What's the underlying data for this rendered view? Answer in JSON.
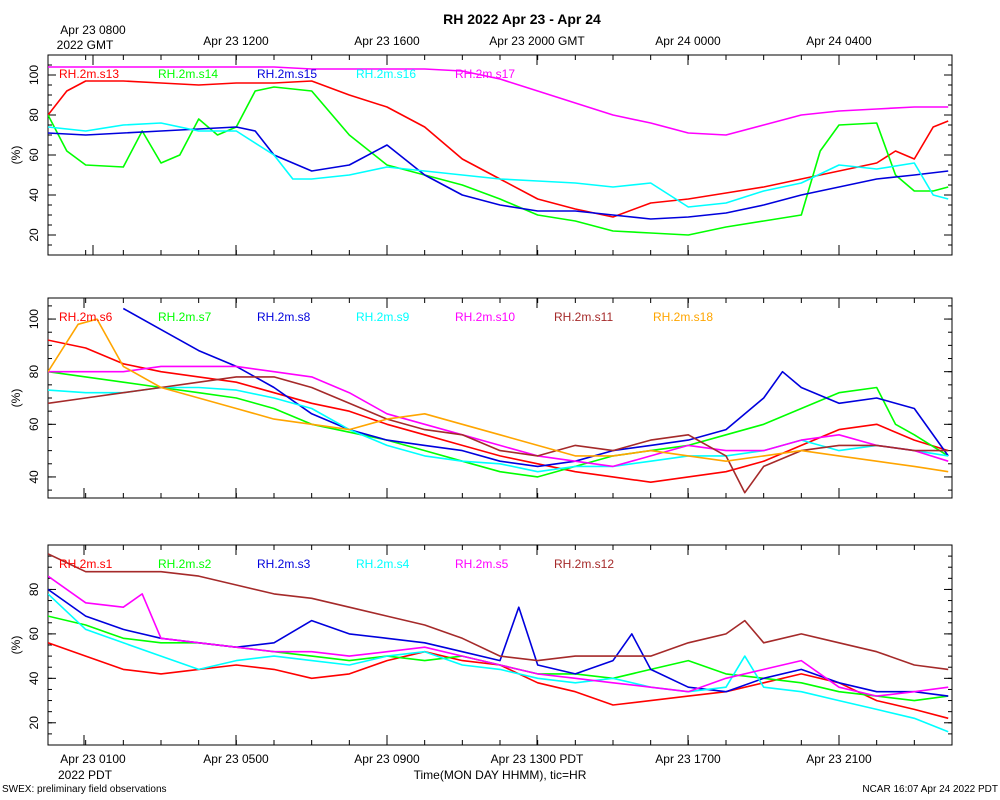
{
  "title": "RH 2022 Apr 23 - Apr 24",
  "top_axis_labels": [
    "Apr 23 0800",
    "Apr 23 1200",
    "Apr 23 1600",
    "Apr 23 2000 GMT",
    "Apr 24 0000",
    "Apr 24 0400"
  ],
  "top_year_label": "2022 GMT",
  "bottom_axis_labels": [
    "Apr 23 0100",
    "Apr 23 0500",
    "Apr 23 0900",
    "Apr 23 1300 PDT",
    "Apr 23 1700",
    "Apr 23 2100"
  ],
  "bottom_year_label": "2022 PDT",
  "x_axis_title": "Time(MON DAY HHMM), tic=HR",
  "footer_left": "SWEX: preliminary field observations",
  "footer_right": "NCAR 16:07 Apr 24 2022 PDT",
  "chart_data": [
    {
      "type": "line",
      "title": "RH 2022 Apr 23 - Apr 24",
      "ylabel": "(%)",
      "xlabel": "Time(MON DAY HHMM), tic=HR",
      "x_unit": "hours since Apr 23 0000 PDT",
      "xlim": [
        0,
        24
      ],
      "ylim": [
        10,
        110
      ],
      "yticks": [
        20,
        40,
        60,
        80,
        100
      ],
      "series": [
        {
          "name": "RH.2m.s13",
          "color": "#ff0000",
          "x": [
            0,
            0.5,
            1,
            2,
            3,
            4,
            5,
            6,
            7,
            8,
            9,
            10,
            11,
            12,
            13,
            14,
            15,
            16,
            17,
            18,
            19,
            20,
            21,
            22,
            22.5,
            23,
            23.5,
            23.9
          ],
          "y": [
            80,
            92,
            97,
            97,
            96,
            95,
            96,
            96,
            97,
            90,
            84,
            74,
            58,
            48,
            38,
            33,
            29,
            36,
            38,
            41,
            44,
            48,
            52,
            56,
            62,
            58,
            74,
            77
          ]
        },
        {
          "name": "RH.2m.s14",
          "color": "#00ff00",
          "x": [
            0,
            0.5,
            1,
            2,
            2.5,
            3,
            3.5,
            4,
            4.5,
            5,
            5.5,
            6,
            7,
            8,
            9,
            10,
            11,
            12,
            13,
            14,
            15,
            16,
            17,
            18,
            19,
            20,
            20.5,
            21,
            22,
            22.5,
            23,
            23.5,
            23.9
          ],
          "y": [
            80,
            62,
            55,
            54,
            72,
            56,
            60,
            78,
            70,
            74,
            92,
            94,
            92,
            70,
            55,
            50,
            45,
            38,
            30,
            27,
            22,
            21,
            20,
            24,
            27,
            30,
            62,
            75,
            76,
            50,
            42,
            42,
            44
          ]
        },
        {
          "name": "RH.2m.s15",
          "color": "#0000dd",
          "x": [
            0,
            1,
            2,
            3,
            4,
            5,
            5.5,
            6,
            7,
            8,
            9,
            10,
            11,
            12,
            13,
            14,
            15,
            16,
            17,
            18,
            19,
            20,
            21,
            22,
            23,
            23.9
          ],
          "y": [
            71,
            70,
            71,
            72,
            73,
            74,
            72,
            60,
            52,
            55,
            65,
            50,
            40,
            35,
            32,
            32,
            30,
            28,
            29,
            31,
            35,
            40,
            44,
            48,
            50,
            52
          ]
        },
        {
          "name": "RH.2m.s16",
          "color": "#00ffff",
          "x": [
            0,
            1,
            2,
            3,
            4,
            5,
            6,
            6.5,
            7,
            8,
            9,
            10,
            11,
            12,
            13,
            14,
            15,
            16,
            17,
            18,
            19,
            20,
            21,
            22,
            23,
            23.5,
            23.9
          ],
          "y": [
            74,
            72,
            75,
            76,
            72,
            72,
            60,
            48,
            48,
            50,
            54,
            52,
            50,
            48,
            47,
            46,
            44,
            46,
            34,
            36,
            42,
            46,
            55,
            53,
            56,
            40,
            38
          ]
        },
        {
          "name": "RH.2m.s17",
          "color": "#ff00ff",
          "x": [
            0,
            2,
            4,
            6,
            7,
            8,
            9,
            10,
            11,
            12,
            13,
            14,
            15,
            16,
            17,
            18,
            19,
            20,
            21,
            22,
            23,
            23.9
          ],
          "y": [
            104,
            104,
            104,
            104,
            103,
            103,
            103,
            103,
            102,
            98,
            92,
            86,
            80,
            76,
            71,
            70,
            75,
            80,
            82,
            83,
            84,
            84
          ]
        }
      ]
    },
    {
      "type": "line",
      "ylabel": "(%)",
      "xlim": [
        0,
        24
      ],
      "ylim": [
        32,
        108
      ],
      "yticks": [
        40,
        60,
        80,
        100
      ],
      "series": [
        {
          "name": "RH.2m.s6",
          "color": "#ff0000",
          "x": [
            0,
            1,
            2,
            3,
            4,
            5,
            6,
            7,
            8,
            9,
            10,
            11,
            12,
            13,
            14,
            15,
            16,
            17,
            18,
            19,
            20,
            21,
            22,
            23,
            23.9
          ],
          "y": [
            92,
            89,
            83,
            80,
            78,
            76,
            72,
            68,
            65,
            60,
            56,
            52,
            48,
            45,
            42,
            40,
            38,
            40,
            42,
            46,
            52,
            58,
            60,
            54,
            50
          ]
        },
        {
          "name": "RH.2m.s7",
          "color": "#00ff00",
          "x": [
            0,
            1,
            2,
            3,
            4,
            5,
            6,
            7,
            8,
            9,
            10,
            11,
            12,
            13,
            14,
            15,
            16,
            17,
            18,
            19,
            20,
            21,
            22,
            22.5,
            23,
            23.9
          ],
          "y": [
            80,
            78,
            76,
            74,
            72,
            70,
            66,
            60,
            57,
            54,
            50,
            46,
            42,
            40,
            44,
            48,
            50,
            52,
            56,
            60,
            66,
            72,
            74,
            60,
            56,
            48
          ]
        },
        {
          "name": "RH.2m.s8",
          "color": "#0000dd",
          "x": [
            2,
            3,
            4,
            5,
            6,
            7,
            8,
            9,
            10,
            11,
            12,
            13,
            14,
            15,
            16,
            17,
            18,
            19,
            19.5,
            20,
            21,
            22,
            23,
            23.9
          ],
          "y": [
            104,
            96,
            88,
            82,
            74,
            64,
            58,
            54,
            52,
            50,
            46,
            44,
            46,
            50,
            52,
            54,
            58,
            70,
            80,
            74,
            68,
            70,
            66,
            48
          ]
        },
        {
          "name": "RH.2m.s9",
          "color": "#00ffff",
          "x": [
            0,
            1,
            2,
            3,
            4,
            5,
            6,
            7,
            8,
            9,
            10,
            11,
            12,
            13,
            14,
            15,
            16,
            17,
            18,
            19,
            20,
            21,
            22,
            23,
            23.9
          ],
          "y": [
            73,
            72,
            72,
            74,
            74,
            73,
            70,
            66,
            58,
            52,
            48,
            46,
            45,
            42,
            44,
            44,
            46,
            48,
            48,
            50,
            54,
            50,
            52,
            50,
            48
          ]
        },
        {
          "name": "RH.2m.s10",
          "color": "#ff00ff",
          "x": [
            0,
            1,
            2,
            3,
            4,
            5,
            6,
            7,
            8,
            9,
            10,
            11,
            12,
            13,
            14,
            15,
            16,
            17,
            18,
            19,
            20,
            21,
            22,
            23,
            23.9
          ],
          "y": [
            80,
            80,
            80,
            82,
            82,
            82,
            80,
            78,
            72,
            64,
            60,
            56,
            52,
            48,
            46,
            44,
            48,
            52,
            50,
            50,
            54,
            56,
            52,
            50,
            46
          ]
        },
        {
          "name": "RH.2m.s11",
          "color": "#a52a2a",
          "x": [
            0,
            1,
            2,
            3,
            4,
            5,
            6,
            7,
            8,
            9,
            10,
            11,
            12,
            13,
            14,
            15,
            16,
            17,
            18,
            18.5,
            19,
            20,
            21,
            22,
            23,
            23.9
          ],
          "y": [
            68,
            70,
            72,
            74,
            76,
            78,
            78,
            74,
            68,
            62,
            58,
            56,
            50,
            48,
            52,
            50,
            54,
            56,
            48,
            34,
            44,
            50,
            52,
            52,
            50,
            50
          ]
        },
        {
          "name": "RH.2m.s18",
          "color": "#ffa500",
          "x": [
            0,
            0.8,
            1.3,
            2,
            3,
            4,
            5,
            6,
            7,
            8,
            9,
            10,
            11,
            12,
            13,
            14,
            15,
            16,
            17,
            18,
            19,
            20,
            21,
            22,
            23,
            23.9
          ],
          "y": [
            80,
            98,
            100,
            82,
            74,
            70,
            66,
            62,
            60,
            58,
            62,
            64,
            60,
            56,
            52,
            48,
            48,
            50,
            48,
            46,
            48,
            50,
            48,
            46,
            44,
            42
          ]
        }
      ]
    },
    {
      "type": "line",
      "ylabel": "(%)",
      "xlim": [
        0,
        24
      ],
      "ylim": [
        10,
        100
      ],
      "yticks": [
        20,
        40,
        60,
        80
      ],
      "series": [
        {
          "name": "RH.2m.s1",
          "color": "#ff0000",
          "x": [
            0,
            1,
            2,
            3,
            4,
            5,
            6,
            7,
            8,
            9,
            10,
            11,
            12,
            13,
            14,
            15,
            16,
            17,
            18,
            19,
            20,
            21,
            22,
            23,
            23.9
          ],
          "y": [
            56,
            50,
            44,
            42,
            44,
            46,
            44,
            40,
            42,
            48,
            52,
            48,
            46,
            38,
            34,
            28,
            30,
            32,
            34,
            38,
            42,
            38,
            30,
            26,
            22
          ]
        },
        {
          "name": "RH.2m.s2",
          "color": "#00ff00",
          "x": [
            0,
            1,
            2,
            3,
            4,
            5,
            6,
            7,
            8,
            9,
            10,
            11,
            12,
            13,
            14,
            15,
            16,
            17,
            18,
            19,
            20,
            21,
            22,
            23,
            23.9
          ],
          "y": [
            68,
            64,
            58,
            56,
            56,
            54,
            52,
            50,
            48,
            50,
            48,
            50,
            46,
            42,
            42,
            40,
            44,
            48,
            42,
            40,
            38,
            34,
            32,
            30,
            32
          ]
        },
        {
          "name": "RH.2m.s3",
          "color": "#0000dd",
          "x": [
            0,
            1,
            2,
            3,
            4,
            5,
            6,
            7,
            8,
            9,
            10,
            11,
            12,
            12.5,
            13,
            14,
            15,
            15.5,
            16,
            17,
            18,
            19,
            20,
            21,
            22,
            23,
            23.9
          ],
          "y": [
            80,
            68,
            62,
            58,
            56,
            54,
            56,
            66,
            60,
            58,
            56,
            52,
            48,
            72,
            46,
            42,
            48,
            60,
            44,
            36,
            34,
            40,
            44,
            38,
            34,
            34,
            32
          ]
        },
        {
          "name": "RH.2m.s4",
          "color": "#00ffff",
          "x": [
            0,
            1,
            2,
            3,
            4,
            5,
            6,
            7,
            8,
            9,
            10,
            11,
            12,
            13,
            14,
            15,
            16,
            17,
            18,
            18.5,
            19,
            20,
            21,
            22,
            23,
            23.9
          ],
          "y": [
            78,
            62,
            56,
            50,
            44,
            48,
            50,
            48,
            46,
            50,
            52,
            46,
            44,
            40,
            38,
            40,
            36,
            34,
            36,
            50,
            36,
            34,
            30,
            26,
            22,
            16
          ]
        },
        {
          "name": "RH.2m.s5",
          "color": "#ff00ff",
          "x": [
            0,
            1,
            2,
            2.5,
            3,
            4,
            5,
            6,
            7,
            8,
            9,
            10,
            11,
            12,
            13,
            14,
            15,
            16,
            17,
            18,
            19,
            20,
            21,
            22,
            23,
            23.9
          ],
          "y": [
            86,
            74,
            72,
            78,
            58,
            56,
            54,
            52,
            52,
            50,
            52,
            54,
            50,
            46,
            42,
            40,
            38,
            36,
            34,
            40,
            44,
            48,
            36,
            32,
            34,
            36
          ]
        },
        {
          "name": "RH.2m.s12",
          "color": "#a52a2a",
          "x": [
            0,
            1,
            2,
            3,
            4,
            5,
            6,
            7,
            8,
            9,
            10,
            11,
            12,
            13,
            14,
            15,
            16,
            17,
            18,
            18.5,
            19,
            20,
            21,
            22,
            23,
            23.9
          ],
          "y": [
            96,
            88,
            88,
            88,
            86,
            82,
            78,
            76,
            72,
            68,
            64,
            58,
            50,
            48,
            50,
            50,
            50,
            56,
            60,
            66,
            56,
            60,
            56,
            52,
            46,
            44
          ]
        }
      ]
    }
  ]
}
